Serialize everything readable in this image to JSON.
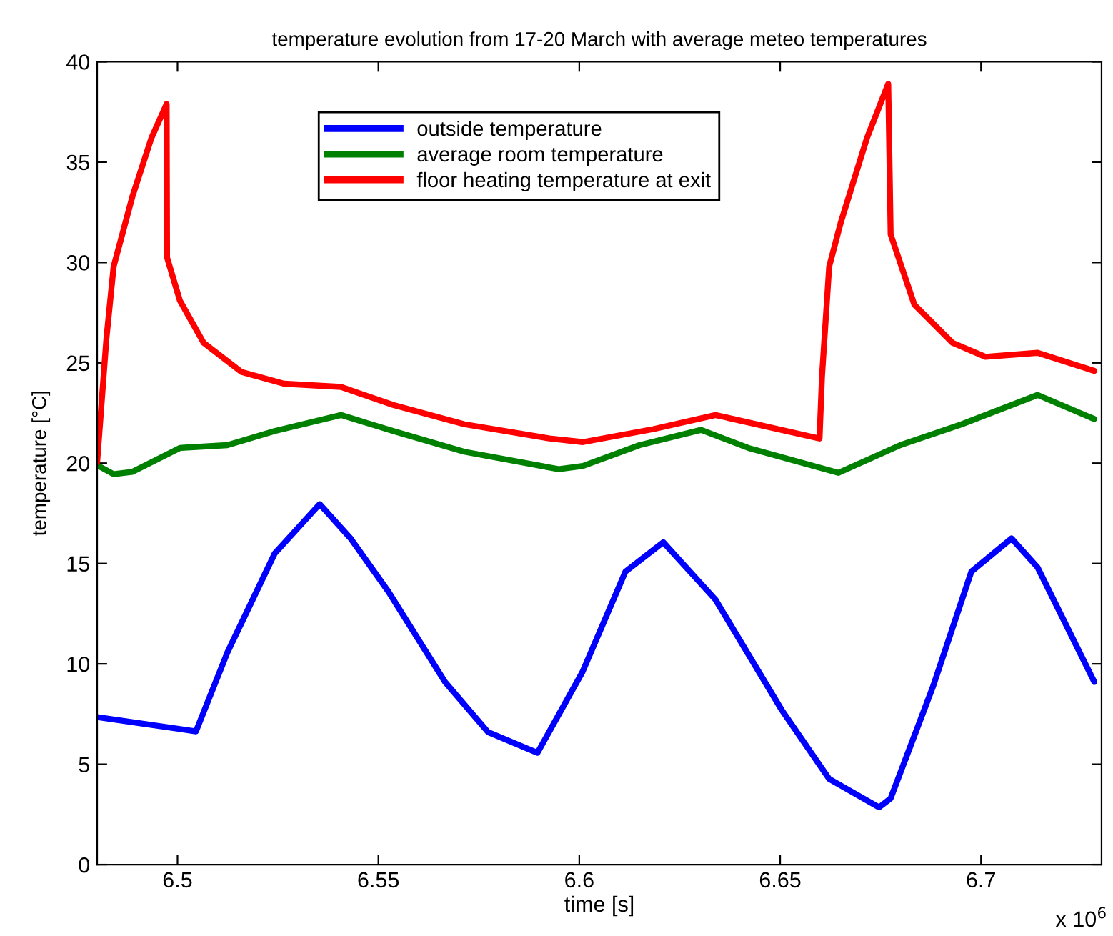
{
  "chart_data": {
    "type": "line",
    "title": "temperature evolution from 17-20 March with average meteo temperatures",
    "xlabel": "time [s]",
    "ylabel": "temperature [°C]",
    "xlim": [
      6.48,
      6.73
    ],
    "ylim": [
      0,
      40
    ],
    "xticks": [
      6.5,
      6.55,
      6.6,
      6.65,
      6.7
    ],
    "yticks": [
      0,
      5,
      10,
      15,
      20,
      25,
      30,
      35,
      40
    ],
    "grid": false,
    "legend": "top",
    "line_style": "solid",
    "marker": "none",
    "annotations": [
      "x 10$^{6}$"
    ],
    "series": [
      {
        "name": "outside temperature",
        "color": "#0000ff",
        "x": [
          6.48,
          6.5046,
          6.5124,
          6.5242,
          6.5354,
          6.5431,
          6.5525,
          6.5666,
          6.5773,
          6.5896,
          6.6008,
          6.6115,
          6.6209,
          6.6339,
          6.6504,
          6.6622,
          6.6746,
          6.6775,
          6.6881,
          6.6976,
          6.7076,
          6.7141,
          6.7282
        ],
        "values": [
          7.35,
          6.64,
          10.56,
          15.5,
          17.96,
          16.25,
          13.6,
          9.1,
          6.6,
          5.57,
          9.6,
          14.6,
          16.06,
          13.2,
          7.7,
          4.27,
          2.85,
          3.3,
          8.9,
          14.6,
          16.25,
          14.8,
          9.1
        ]
      },
      {
        "name": "average room temperature",
        "color": "#008000",
        "x": [
          6.48,
          6.4841,
          6.4888,
          6.5006,
          6.5124,
          6.5242,
          6.5407,
          6.5537,
          6.5714,
          6.5949,
          6.6009,
          6.615,
          6.6303,
          6.6421,
          6.6645,
          6.6799,
          6.6952,
          6.7141,
          6.7282
        ],
        "values": [
          19.9,
          19.45,
          19.57,
          20.76,
          20.9,
          21.6,
          22.4,
          21.6,
          20.57,
          19.7,
          19.86,
          20.9,
          21.66,
          20.76,
          19.52,
          20.9,
          21.94,
          23.4,
          22.2
        ]
      },
      {
        "name": "floor heating temperature at exit",
        "color": "#ff0000",
        "x": [
          6.48,
          6.4823,
          6.4841,
          6.4888,
          6.4935,
          6.4973,
          6.4974,
          6.5006,
          6.5065,
          6.5159,
          6.5265,
          6.5407,
          6.5537,
          6.5714,
          6.5926,
          6.6009,
          6.6185,
          6.6339,
          6.6598,
          6.6604,
          6.6622,
          6.6651,
          6.6716,
          6.6769,
          6.6775,
          6.6834,
          6.6929,
          6.7011,
          6.7141,
          6.7282
        ],
        "values": [
          20.05,
          26.2,
          29.8,
          33.3,
          36.2,
          37.9,
          30.25,
          28.1,
          26.0,
          24.55,
          23.96,
          23.8,
          22.9,
          21.94,
          21.23,
          21.05,
          21.7,
          22.4,
          21.23,
          24.3,
          29.8,
          32.0,
          36.2,
          38.9,
          31.4,
          27.9,
          26.0,
          25.3,
          25.5,
          24.6
        ]
      }
    ]
  }
}
